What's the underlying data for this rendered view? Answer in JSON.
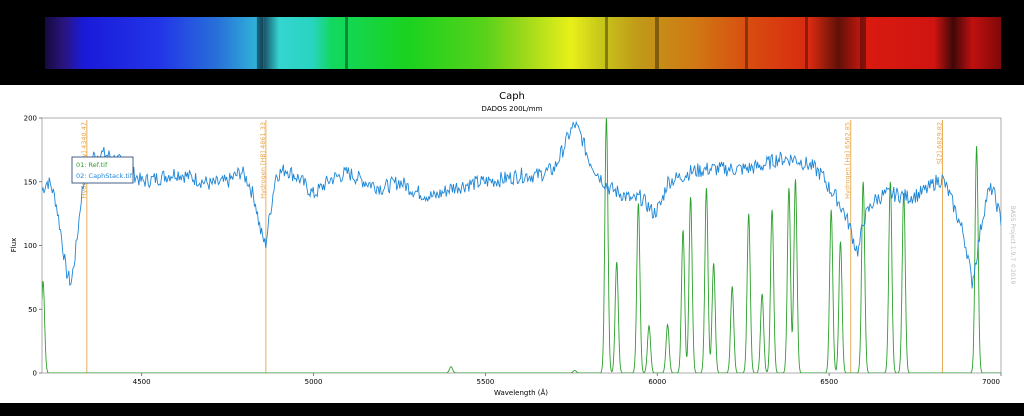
{
  "chart_data": {
    "type": "line",
    "title": "Caph",
    "subtitle": "DADOS 200L/mm",
    "xlabel": "Wavelength (Å)",
    "ylabel": "Flux",
    "xlim": [
      4210,
      7000
    ],
    "ylim": [
      0,
      200
    ],
    "x_ticks": [
      "4500",
      "5000",
      "5500",
      "6000",
      "6500",
      "7000"
    ],
    "y_ticks": [
      "0",
      "50",
      "100",
      "150",
      "200"
    ],
    "grid": false,
    "legend": {
      "placement": "top-left",
      "entries": [
        "01: Ref.tif",
        "02: CaphStack.tif"
      ]
    },
    "watermark": "BASS Project 1.9.7 ©2019",
    "reference_lines": [
      {
        "x": 4340.47,
        "label": "Hydrogen [Hγ] 4340.47"
      },
      {
        "x": 4861.33,
        "label": "Hydrogen [Hβ] 4861.33"
      },
      {
        "x": 6562.85,
        "label": "Hydrogen [Hα] 6562.85"
      },
      {
        "x": 6829.82,
        "label": "S[2] 6829.82"
      }
    ],
    "series": [
      {
        "name": "01: Ref.tif",
        "color": "#2ca02c",
        "baseline": 0,
        "peaks": [
          [
            4213,
            72
          ],
          [
            5400,
            5
          ],
          [
            5760,
            2
          ],
          [
            5852,
            200
          ],
          [
            5882,
            87
          ],
          [
            5945,
            133
          ],
          [
            5976,
            37
          ],
          [
            6030,
            38
          ],
          [
            6075,
            112
          ],
          [
            6097,
            138
          ],
          [
            6143,
            145
          ],
          [
            6164,
            86
          ],
          [
            6218,
            68
          ],
          [
            6266,
            125
          ],
          [
            6305,
            62
          ],
          [
            6334,
            128
          ],
          [
            6383,
            145
          ],
          [
            6402,
            152
          ],
          [
            6506,
            128
          ],
          [
            6533,
            103
          ],
          [
            6599,
            150
          ],
          [
            6678,
            150
          ],
          [
            6717,
            141
          ],
          [
            6929,
            178
          ]
        ]
      },
      {
        "name": "02: CaphStack.tif",
        "color": "#1f87d6",
        "points": [
          [
            4210,
            143
          ],
          [
            4225,
            150
          ],
          [
            4235,
            148
          ],
          [
            4250,
            135
          ],
          [
            4265,
            110
          ],
          [
            4280,
            80
          ],
          [
            4295,
            70
          ],
          [
            4310,
            100
          ],
          [
            4325,
            140
          ],
          [
            4340,
            160
          ],
          [
            4360,
            170
          ],
          [
            4385,
            172
          ],
          [
            4410,
            170
          ],
          [
            4440,
            165
          ],
          [
            4470,
            158
          ],
          [
            4500,
            150
          ],
          [
            4550,
            153
          ],
          [
            4600,
            157
          ],
          [
            4650,
            153
          ],
          [
            4700,
            148
          ],
          [
            4750,
            150
          ],
          [
            4790,
            158
          ],
          [
            4810,
            150
          ],
          [
            4830,
            135
          ],
          [
            4845,
            112
          ],
          [
            4860,
            100
          ],
          [
            4875,
            128
          ],
          [
            4890,
            155
          ],
          [
            4920,
            160
          ],
          [
            4960,
            152
          ],
          [
            5000,
            140
          ],
          [
            5050,
            152
          ],
          [
            5100,
            157
          ],
          [
            5150,
            150
          ],
          [
            5200,
            145
          ],
          [
            5250,
            150
          ],
          [
            5300,
            142
          ],
          [
            5350,
            138
          ],
          [
            5400,
            145
          ],
          [
            5450,
            148
          ],
          [
            5500,
            150
          ],
          [
            5550,
            152
          ],
          [
            5600,
            155
          ],
          [
            5650,
            155
          ],
          [
            5700,
            160
          ],
          [
            5725,
            175
          ],
          [
            5745,
            188
          ],
          [
            5760,
            195
          ],
          [
            5780,
            185
          ],
          [
            5800,
            168
          ],
          [
            5830,
            155
          ],
          [
            5860,
            145
          ],
          [
            5900,
            140
          ],
          [
            5930,
            135
          ],
          [
            5950,
            138
          ],
          [
            5970,
            132
          ],
          [
            5990,
            125
          ],
          [
            6010,
            132
          ],
          [
            6030,
            150
          ],
          [
            6060,
            153
          ],
          [
            6100,
            158
          ],
          [
            6150,
            160
          ],
          [
            6200,
            160
          ],
          [
            6250,
            160
          ],
          [
            6300,
            162
          ],
          [
            6350,
            168
          ],
          [
            6400,
            168
          ],
          [
            6450,
            162
          ],
          [
            6480,
            155
          ],
          [
            6500,
            145
          ],
          [
            6520,
            138
          ],
          [
            6540,
            128
          ],
          [
            6560,
            115
          ],
          [
            6575,
            100
          ],
          [
            6585,
            95
          ],
          [
            6600,
            120
          ],
          [
            6630,
            135
          ],
          [
            6660,
            140
          ],
          [
            6700,
            140
          ],
          [
            6730,
            138
          ],
          [
            6760,
            140
          ],
          [
            6790,
            145
          ],
          [
            6810,
            150
          ],
          [
            6830,
            152
          ],
          [
            6850,
            140
          ],
          [
            6870,
            125
          ],
          [
            6890,
            110
          ],
          [
            6905,
            90
          ],
          [
            6915,
            70
          ],
          [
            6925,
            85
          ],
          [
            6945,
            120
          ],
          [
            6960,
            140
          ],
          [
            6975,
            145
          ],
          [
            6990,
            130
          ],
          [
            7000,
            120
          ]
        ]
      }
    ]
  }
}
